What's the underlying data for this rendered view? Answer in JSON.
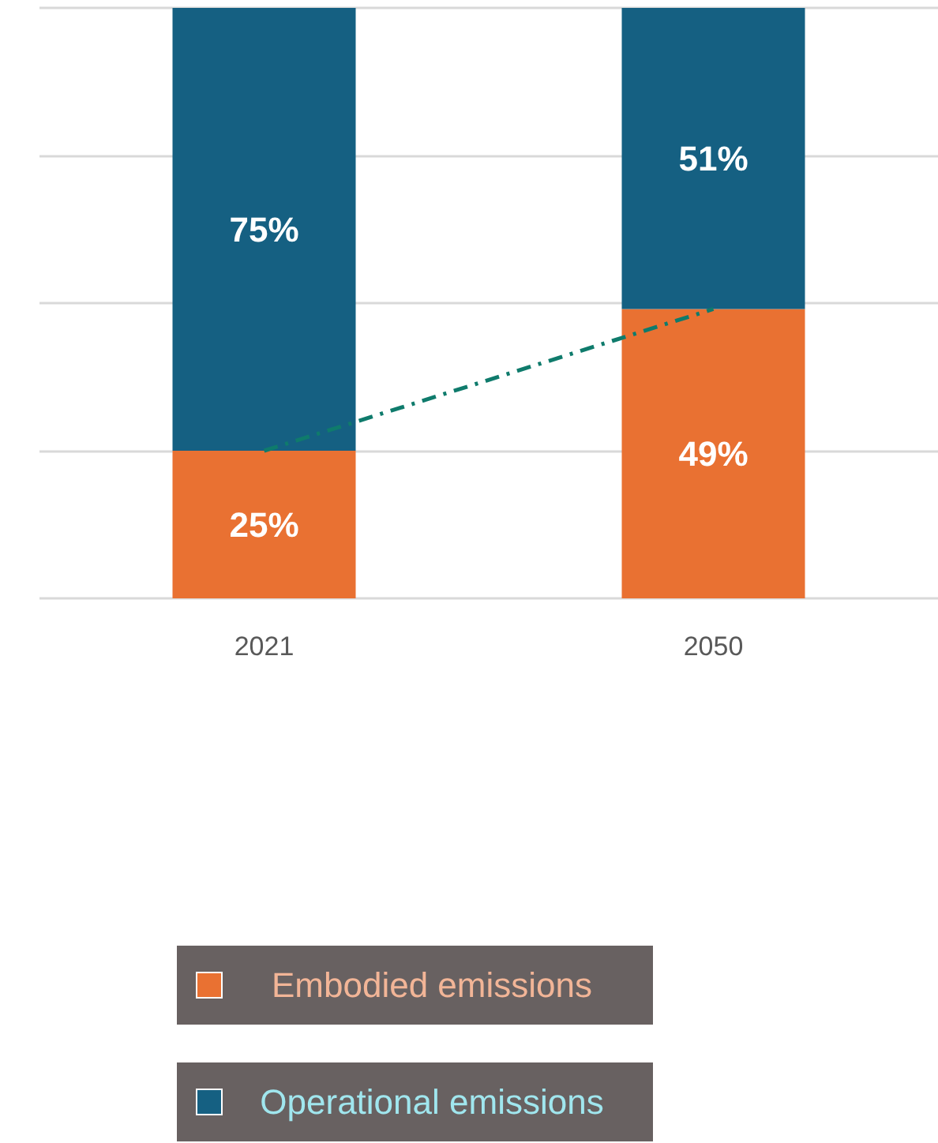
{
  "chart_data": {
    "type": "bar",
    "stacked": true,
    "categories": [
      "2021",
      "2050"
    ],
    "series": [
      {
        "name": "Embodied emissions",
        "color": "#e97132",
        "values": [
          25,
          49
        ],
        "value_labels": [
          "25%",
          "49%"
        ]
      },
      {
        "name": "Operational emissions",
        "color": "#156082",
        "values": [
          75,
          51
        ],
        "value_labels": [
          "75%",
          "51%"
        ]
      },
      {
        "type": "line",
        "color": "#0f7b6c",
        "values": [
          25,
          49
        ],
        "line_style": "dashed"
      }
    ],
    "ylim": [
      0,
      100
    ],
    "yticks": [
      {
        "value": 0,
        "label": null
      },
      {
        "value": 25,
        "label": null
      },
      {
        "value": 50,
        "label": null
      },
      {
        "value": 75,
        "label": null
      },
      {
        "value": 100,
        "label": null
      }
    ],
    "tick_labels": "x",
    "grid": "y",
    "legend": "bottom"
  }
}
